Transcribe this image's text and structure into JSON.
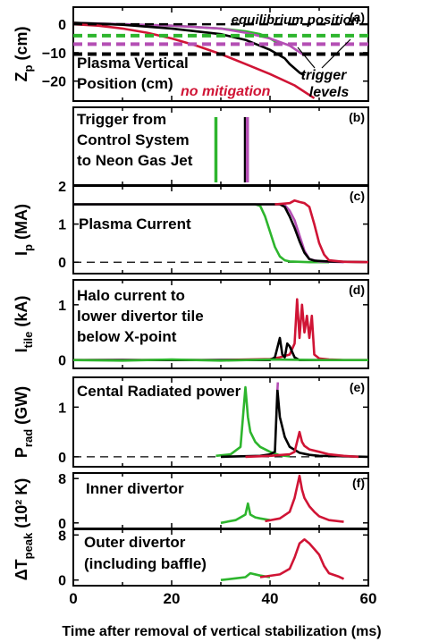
{
  "xlabel": "Time after removal of vertical stabilization (ms)",
  "x_ticks": [
    "0",
    "20",
    "40",
    "60"
  ],
  "colors": {
    "green": "#2db52d",
    "magenta": "#b44fb4",
    "black": "#000000",
    "red": "#d01435"
  },
  "chart_data": [
    {
      "id": "a",
      "type": "line",
      "tag": "(a)",
      "ylabel": "Zp (cm)",
      "ylabel_main": "Z",
      "ylabel_sub": "p",
      "ylabel_unit": " (cm)",
      "xlim": [
        0,
        60
      ],
      "ylim": [
        -27,
        6
      ],
      "y_ticks": [
        {
          "v": 0,
          "t": "0"
        },
        {
          "v": -10,
          "t": "−10"
        },
        {
          "v": -20,
          "t": "−20"
        }
      ],
      "texts": {
        "equilibrium": "equilibrium position",
        "title_line1": "Plasma Vertical",
        "title_line2": "Position (cm)",
        "no_mitigation": "no mitigation",
        "trigger_line1": "trigger",
        "trigger_line2": "levels"
      },
      "trigger_levels": [
        {
          "series": "green",
          "y": -4
        },
        {
          "series": "magenta",
          "y": -7
        },
        {
          "series": "black",
          "y": -10.5
        }
      ],
      "equilibrium_y": 0,
      "series": [
        {
          "color": "green",
          "x": [
            0,
            10,
            20,
            30,
            35,
            38,
            40,
            42
          ],
          "y": [
            0.5,
            0,
            -0.5,
            -1.5,
            -2.5,
            -3.5,
            -5,
            -7
          ]
        },
        {
          "color": "magenta",
          "x": [
            0,
            10,
            20,
            30,
            35,
            40,
            44,
            47
          ],
          "y": [
            0.5,
            0,
            -0.5,
            -1.5,
            -3,
            -5,
            -7.5,
            -11
          ]
        },
        {
          "color": "black",
          "x": [
            0,
            10,
            20,
            30,
            35,
            40,
            43,
            44,
            46,
            47
          ],
          "y": [
            0.5,
            -0.2,
            -1.5,
            -3.5,
            -5.5,
            -9,
            -12,
            -14,
            -17,
            -18
          ]
        },
        {
          "color": "red",
          "x": [
            0,
            5,
            10,
            15,
            20,
            25,
            30,
            35,
            40,
            45,
            49
          ],
          "y": [
            0,
            -0.5,
            -1.5,
            -3,
            -5,
            -7.5,
            -10.5,
            -14,
            -17.5,
            -21.5,
            -26
          ]
        }
      ]
    },
    {
      "id": "b",
      "type": "event",
      "tag": "(b)",
      "ylabel": "",
      "xlim": [
        0,
        60
      ],
      "texts": {
        "line1": "Trigger from",
        "line2": "Control System",
        "line3": "to Neon Gas Jet"
      },
      "triggers": [
        {
          "color": "green",
          "x": 29
        },
        {
          "color": "black",
          "x": 35
        },
        {
          "color": "magenta",
          "x": 35.4
        }
      ]
    },
    {
      "id": "c",
      "type": "line",
      "tag": "(c)",
      "ylabel": "Ip (MA)",
      "ylabel_main": "I",
      "ylabel_sub": "p",
      "ylabel_unit": " (MA)",
      "xlim": [
        0,
        60
      ],
      "ylim": [
        -0.3,
        2
      ],
      "y_ticks": [
        {
          "v": 2,
          "t": "2"
        },
        {
          "v": 1,
          "t": "1"
        },
        {
          "v": 0,
          "t": "0"
        }
      ],
      "texts": {
        "title": "Plasma Current"
      },
      "zero_dashed": true,
      "series": [
        {
          "color": "green",
          "x": [
            0,
            37,
            38,
            39,
            40,
            41,
            42,
            43,
            44,
            46,
            48,
            52
          ],
          "y": [
            1.52,
            1.52,
            1.48,
            1.2,
            0.8,
            0.4,
            0.15,
            0.05,
            0.02,
            0.01,
            0,
            0
          ]
        },
        {
          "color": "magenta",
          "x": [
            0,
            42,
            43,
            44,
            45,
            46,
            47,
            48,
            50,
            55
          ],
          "y": [
            1.52,
            1.52,
            1.5,
            1.35,
            1.1,
            0.7,
            0.3,
            0.08,
            0.02,
            0
          ]
        },
        {
          "color": "black",
          "x": [
            0,
            42,
            43,
            44,
            45,
            46,
            47,
            48,
            49,
            52,
            60
          ],
          "y": [
            1.52,
            1.52,
            1.45,
            1.2,
            0.9,
            0.55,
            0.25,
            0.08,
            0.04,
            0.02,
            0
          ]
        },
        {
          "color": "red",
          "x": [
            41,
            44,
            45,
            46,
            47,
            48,
            49,
            50,
            51,
            52,
            55,
            60
          ],
          "y": [
            1.52,
            1.55,
            1.62,
            1.58,
            1.55,
            1.45,
            1.0,
            0.5,
            0.2,
            0.05,
            0.01,
            0
          ]
        }
      ]
    },
    {
      "id": "d",
      "type": "line",
      "tag": "(d)",
      "ylabel": "Itile (kA)",
      "ylabel_main": "I",
      "ylabel_sub": "tile",
      "ylabel_unit": " (kA)",
      "xlim": [
        0,
        60
      ],
      "ylim": [
        -0.15,
        1.45
      ],
      "y_ticks": [
        {
          "v": 1,
          "t": "1"
        },
        {
          "v": 0,
          "t": "0"
        }
      ],
      "texts": {
        "line1": "Halo current to",
        "line2": "lower divertor tile",
        "line3": "below X-point"
      },
      "series": [
        {
          "color": "red",
          "x": [
            0,
            30,
            40,
            42,
            44,
            45,
            45.5,
            46,
            46.5,
            47,
            47.5,
            48,
            48.5,
            49,
            50,
            52,
            55,
            60
          ],
          "y": [
            0,
            0,
            0.02,
            0.05,
            0.1,
            0.3,
            1.1,
            0.4,
            1.0,
            0.5,
            0.8,
            0.4,
            0.8,
            0.1,
            0.03,
            0.01,
            0,
            0
          ]
        },
        {
          "color": "black",
          "x": [
            0,
            40,
            41,
            42,
            42.5,
            43,
            43.5,
            44,
            45,
            46,
            50
          ],
          "y": [
            0,
            0,
            0.05,
            0.4,
            0.1,
            0.05,
            0.3,
            0.25,
            0.05,
            0,
            0
          ]
        },
        {
          "color": "green",
          "x": [
            0,
            10,
            20,
            30,
            40,
            50,
            60
          ],
          "y": [
            0,
            -0.01,
            0.01,
            -0.01,
            0.01,
            0,
            0
          ]
        }
      ]
    },
    {
      "id": "e",
      "type": "line",
      "tag": "(e)",
      "ylabel": "Prad (GW)",
      "ylabel_main": "P",
      "ylabel_sub": "rad",
      "ylabel_unit": " (GW)",
      "xlim": [
        0,
        60
      ],
      "ylim": [
        -0.2,
        1.6
      ],
      "y_ticks": [
        {
          "v": 1,
          "t": "1"
        },
        {
          "v": 0,
          "t": "0"
        }
      ],
      "texts": {
        "title": "Cental Radiated power"
      },
      "zero_dashed": true,
      "series": [
        {
          "color": "green",
          "x": [
            29,
            32,
            34,
            35,
            35.5,
            36,
            37,
            38,
            40,
            42,
            44
          ],
          "y": [
            0.02,
            0.05,
            0.2,
            1.4,
            0.8,
            0.5,
            0.3,
            0.2,
            0.1,
            0.03,
            0.01
          ]
        },
        {
          "color": "black",
          "x": [
            30,
            38,
            40,
            41,
            41.5,
            42,
            43,
            44,
            46,
            48,
            50,
            55,
            60
          ],
          "y": [
            0,
            0.02,
            0.05,
            0.1,
            1.35,
            0.8,
            0.4,
            0.2,
            0.08,
            0.04,
            0.02,
            0.01,
            0
          ]
        },
        {
          "color": "magenta",
          "x": [
            41.5,
            41.6
          ],
          "y": [
            1.35,
            1.5
          ]
        },
        {
          "color": "red",
          "x": [
            35,
            40,
            44,
            45,
            46,
            46.5,
            47,
            48,
            50,
            52,
            55,
            58
          ],
          "y": [
            0,
            0.02,
            0.05,
            0.1,
            0.5,
            0.3,
            0.22,
            0.15,
            0.1,
            0.05,
            0.02,
            0
          ]
        }
      ]
    },
    {
      "id": "f",
      "type": "line",
      "tag": "(f)",
      "ylabel": "ΔTpeak (10² K)",
      "ylabel_main": "ΔT",
      "ylabel_sub": "peak",
      "ylabel_unit": " (10² K)",
      "xlim": [
        0,
        60
      ],
      "ylim": [
        -1,
        9
      ],
      "y_ticks": [
        {
          "v": 8,
          "t": "8"
        },
        {
          "v": 0,
          "t": "0"
        }
      ],
      "texts": {
        "title": "Inner divertor"
      },
      "series": [
        {
          "color": "green",
          "x": [
            30,
            33,
            35,
            35.5,
            36,
            37,
            38,
            40
          ],
          "y": [
            0,
            0.5,
            1.5,
            3.5,
            1.5,
            1.0,
            0.8,
            0.5
          ]
        },
        {
          "color": "red",
          "x": [
            39,
            42,
            44,
            45,
            46,
            46.5,
            47,
            48,
            49,
            50,
            52,
            55
          ],
          "y": [
            0.3,
            0.8,
            2.0,
            4.5,
            8.5,
            6.0,
            4.5,
            3.0,
            2.0,
            1.2,
            0.5,
            0.2
          ]
        }
      ]
    },
    {
      "id": "g",
      "type": "line",
      "tag": "",
      "xlim": [
        0,
        60
      ],
      "ylim": [
        -1,
        9
      ],
      "y_ticks": [
        {
          "v": 8,
          "t": "8"
        },
        {
          "v": 0,
          "t": "0"
        }
      ],
      "texts": {
        "line1": "Outer divertor",
        "line2": "(including baffle)"
      },
      "series": [
        {
          "color": "green",
          "x": [
            30,
            33,
            35,
            36,
            38,
            40
          ],
          "y": [
            0,
            0.3,
            0.5,
            1.2,
            0.8,
            0.5
          ]
        },
        {
          "color": "red",
          "x": [
            38,
            42,
            44,
            45,
            46,
            47,
            48,
            49,
            50,
            51,
            52,
            54,
            55
          ],
          "y": [
            0.5,
            1.0,
            2.0,
            4.0,
            6.5,
            7.2,
            6.5,
            5.5,
            4.5,
            2.5,
            1.2,
            0.6,
            0.2
          ]
        }
      ]
    }
  ]
}
